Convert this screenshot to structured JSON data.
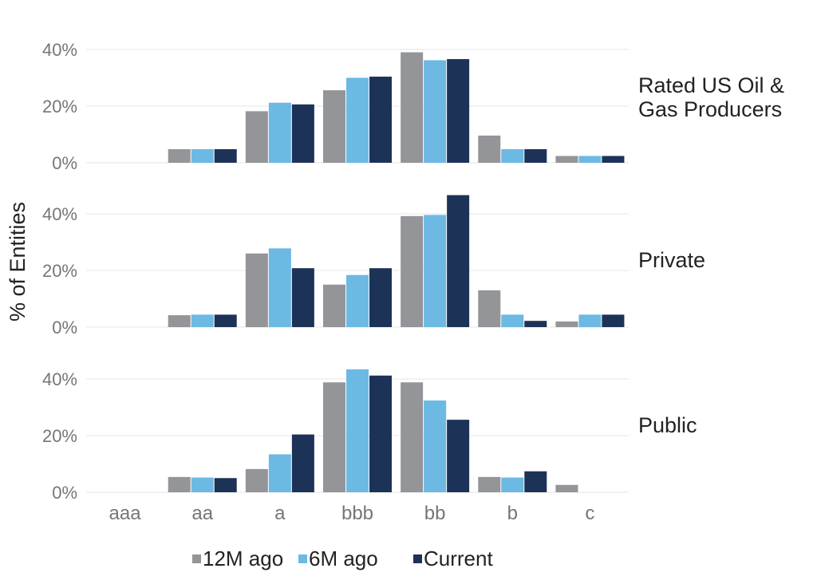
{
  "chart_data": {
    "type": "bar",
    "ylabel": "% of Entities",
    "categories": [
      "aaa",
      "aa",
      "a",
      "bbb",
      "bb",
      "b",
      "c"
    ],
    "y_ticks": [
      "0%",
      "20%",
      "40%"
    ],
    "ylim": [
      0,
      40
    ],
    "grid": true,
    "legend_position": "bottom",
    "colors": {
      "12M ago": "#939598",
      "6M ago": "#6cb9e3",
      "Current": "#1d3257"
    },
    "legend": [
      "12M ago",
      "6M ago",
      "Current"
    ],
    "panels": [
      {
        "label_lines": [
          "Rated US Oil &",
          "Gas Producers"
        ],
        "series": [
          {
            "name": "12M ago",
            "values": [
              0,
              4.8,
              18.2,
              25.6,
              39.0,
              9.6,
              2.4
            ]
          },
          {
            "name": "6M ago",
            "values": [
              0,
              4.8,
              21.2,
              30.0,
              36.2,
              4.8,
              2.4
            ]
          },
          {
            "name": "Current",
            "values": [
              0,
              4.8,
              20.6,
              30.4,
              36.6,
              4.8,
              2.4
            ]
          }
        ]
      },
      {
        "label_lines": [
          "Private"
        ],
        "series": [
          {
            "name": "12M ago",
            "values": [
              0,
              4.2,
              26.0,
              15.0,
              39.2,
              13.0,
              2.0
            ]
          },
          {
            "name": "6M ago",
            "values": [
              0,
              4.4,
              27.8,
              18.4,
              39.6,
              4.4,
              4.4
            ]
          },
          {
            "name": "Current",
            "values": [
              0,
              4.4,
              20.8,
              20.8,
              46.6,
              2.2,
              4.4
            ]
          }
        ]
      },
      {
        "label_lines": [
          "Public"
        ],
        "series": [
          {
            "name": "12M ago",
            "values": [
              0,
              5.4,
              8.2,
              38.8,
              38.8,
              5.4,
              2.6
            ]
          },
          {
            "name": "6M ago",
            "values": [
              0,
              5.2,
              13.4,
              43.4,
              32.4,
              5.2,
              0
            ]
          },
          {
            "name": "Current",
            "values": [
              0,
              5.0,
              20.4,
              41.2,
              25.6,
              7.4,
              0
            ]
          }
        ]
      }
    ]
  }
}
